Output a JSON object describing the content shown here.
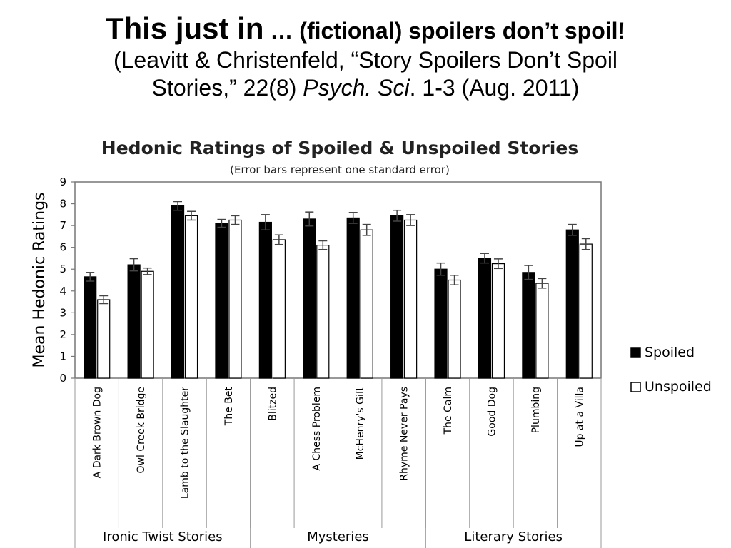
{
  "slide": {
    "title_lead": "This just in",
    "title_rest": " … (fictional) spoilers don’t spoil!",
    "citation_line1": "(Leavitt & Christenfeld, “Story Spoilers Don’t Spoil",
    "citation_line2_pre": "Stories,” 22(8) ",
    "citation_journal": "Psych. Sci",
    "citation_line2_post": ". 1-3 (Aug. 2011)"
  },
  "chart_data": {
    "type": "bar",
    "title": "Hedonic Ratings of Spoiled & Unspoiled Stories",
    "subtitle": "(Error bars represent one standard error)",
    "ylabel": "Mean Hedonic Ratings",
    "ylim": [
      0,
      9
    ],
    "yticks": [
      "0",
      "1",
      "2",
      "3",
      "4",
      "5",
      "6",
      "7",
      "8",
      "9"
    ],
    "grid": false,
    "legend_position": "right",
    "categories": [
      "A Dark Brown Dog",
      "Owl Creek Bridge",
      "Lamb to the Slaughter",
      "The Bet",
      "Blitzed",
      "A Chess Problem",
      "McHenry's Gift",
      "Rhyme Never Pays",
      "The Calm",
      "Good Dog",
      "Plumbing",
      "Up at a Villa"
    ],
    "groups": [
      {
        "label": "Ironic Twist Stories",
        "count": 4
      },
      {
        "label": "Mysteries",
        "count": 4
      },
      {
        "label": "Literary Stories",
        "count": 4
      }
    ],
    "series": [
      {
        "name": "Spoiled",
        "color": "#000000",
        "values": [
          4.65,
          5.2,
          7.9,
          7.1,
          7.15,
          7.3,
          7.35,
          7.45,
          5.0,
          5.5,
          4.85,
          6.8
        ],
        "errors": [
          0.2,
          0.28,
          0.2,
          0.18,
          0.35,
          0.32,
          0.25,
          0.25,
          0.28,
          0.22,
          0.32,
          0.25
        ]
      },
      {
        "name": "Unspoiled",
        "color": "#ffffff",
        "values": [
          3.6,
          4.9,
          7.45,
          7.25,
          6.35,
          6.1,
          6.8,
          7.25,
          4.5,
          5.25,
          4.35,
          6.15
        ],
        "errors": [
          0.18,
          0.15,
          0.2,
          0.2,
          0.22,
          0.2,
          0.25,
          0.25,
          0.22,
          0.22,
          0.22,
          0.25
        ]
      }
    ]
  }
}
